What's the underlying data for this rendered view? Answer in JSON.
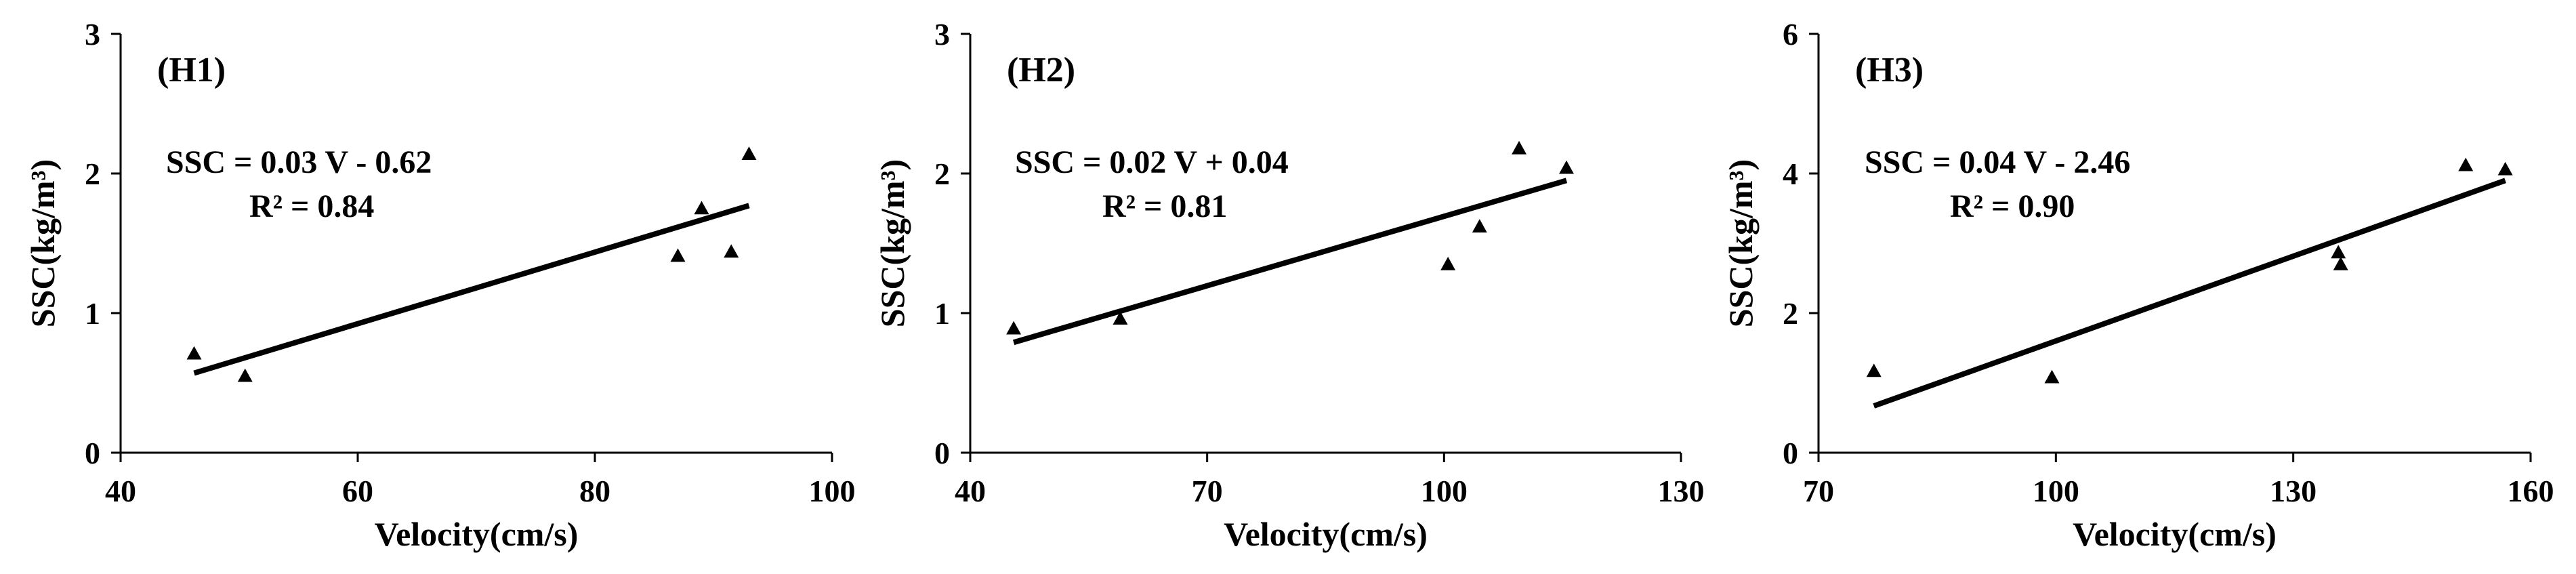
{
  "chart_data": [
    {
      "type": "scatter",
      "panel_label": "(H1)",
      "xlabel": "Velocity(cm/s)",
      "ylabel": "SSC(kg/m³)",
      "xlim": [
        40,
        100
      ],
      "ylim": [
        0,
        3
      ],
      "xticks": [
        "40",
        "60",
        "80",
        "100"
      ],
      "yticks": [
        "0",
        "1",
        "2",
        "3"
      ],
      "points": [
        {
          "x": 46.2,
          "y": 0.71
        },
        {
          "x": 50.5,
          "y": 0.55
        },
        {
          "x": 87.0,
          "y": 1.41
        },
        {
          "x": 89.0,
          "y": 1.75
        },
        {
          "x": 91.5,
          "y": 1.44
        },
        {
          "x": 93.0,
          "y": 2.14
        }
      ],
      "trendline": {
        "x_start": 46.2,
        "x_end": 93.0,
        "y_start": 0.57,
        "y_end": 1.77
      },
      "equation": "SSC = 0.03 V - 0.62",
      "r2": "R² = 0.84"
    },
    {
      "type": "scatter",
      "panel_label": "(H2)",
      "xlabel": "Velocity(cm/s)",
      "ylabel": "SSC(kg/m³)",
      "xlim": [
        40,
        130
      ],
      "ylim": [
        0,
        3
      ],
      "xticks": [
        "40",
        "70",
        "100",
        "130"
      ],
      "yticks": [
        "0",
        "1",
        "2",
        "3"
      ],
      "points": [
        {
          "x": 45.5,
          "y": 0.89
        },
        {
          "x": 59.0,
          "y": 0.96
        },
        {
          "x": 100.5,
          "y": 1.35
        },
        {
          "x": 104.5,
          "y": 1.62
        },
        {
          "x": 109.5,
          "y": 2.18
        },
        {
          "x": 115.5,
          "y": 2.04
        }
      ],
      "trendline": {
        "x_start": 45.5,
        "x_end": 115.5,
        "y_start": 0.79,
        "y_end": 1.95
      },
      "equation": "SSC = 0.02 V + 0.04",
      "r2": "R² = 0.81"
    },
    {
      "type": "scatter",
      "panel_label": "(H3)",
      "xlabel": "Velocity(cm/s)",
      "ylabel": "SSC(kg/m³)",
      "xlim": [
        70,
        160
      ],
      "ylim": [
        0,
        6
      ],
      "xticks": [
        "70",
        "100",
        "130",
        "160"
      ],
      "yticks": [
        "0",
        "2",
        "4",
        "6"
      ],
      "points": [
        {
          "x": 77.0,
          "y": 1.17
        },
        {
          "x": 99.5,
          "y": 1.08
        },
        {
          "x": 135.7,
          "y": 2.87
        },
        {
          "x": 136.0,
          "y": 2.7
        },
        {
          "x": 151.8,
          "y": 4.12
        },
        {
          "x": 156.8,
          "y": 4.06
        }
      ],
      "trendline": {
        "x_start": 77.0,
        "x_end": 156.8,
        "y_start": 0.67,
        "y_end": 3.9
      },
      "equation": "SSC = 0.04 V - 2.46",
      "r2": "R² = 0.90"
    }
  ]
}
